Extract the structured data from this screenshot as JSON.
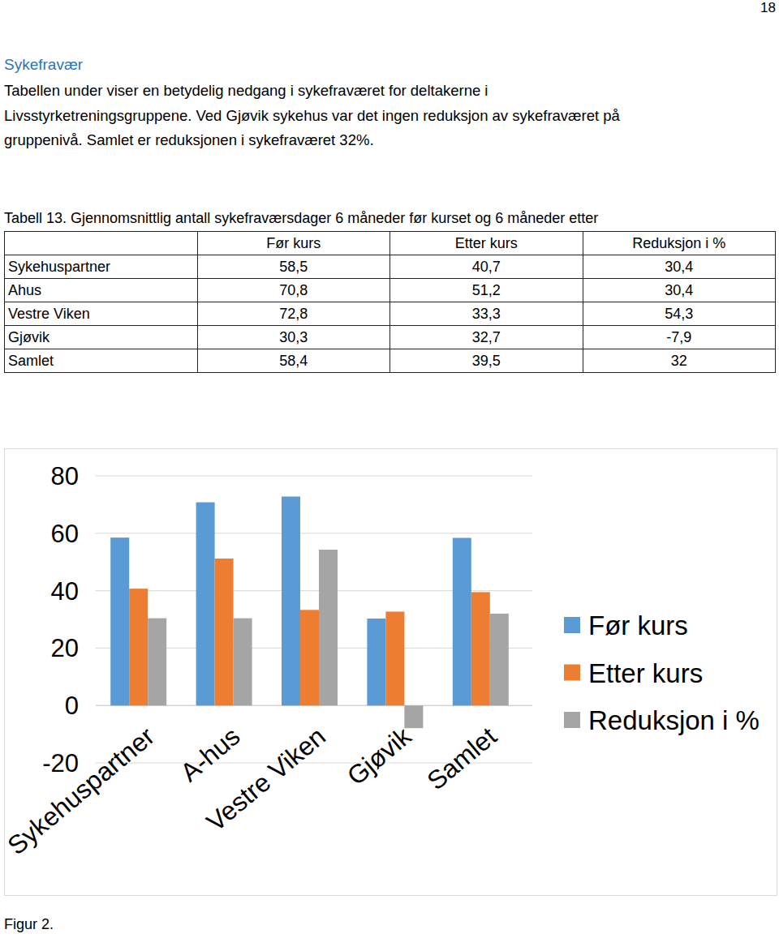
{
  "page_number": "18",
  "heading": "Sykefravær",
  "paragraph": [
    "Tabellen under viser en betydelig nedgang i sykefraværet for deltakerne i",
    "Livsstyrketreningsgruppene. Ved Gjøvik sykehus var det ingen reduksjon av sykefraværet på",
    "gruppenivå. Samlet er reduksjonen i sykefraværet 32%."
  ],
  "table": {
    "caption": "Tabell 13. Gjennomsnittlig antall sykefraværsdager 6 måneder før kurset og 6 måneder etter",
    "header": [
      "Før kurs",
      "Etter kurs",
      "Reduksjon i %"
    ],
    "rows": [
      [
        "Sykehuspartner",
        "58,5",
        "40,7",
        "30,4"
      ],
      [
        "Ahus",
        "70,8",
        "51,2",
        "30,4"
      ],
      [
        "Vestre Viken",
        "72,8",
        "33,3",
        "54,3"
      ],
      [
        "Gjøvik",
        "30,3",
        "32,7",
        "-7,9"
      ],
      [
        "Samlet",
        "58,4",
        "39,5",
        "32"
      ]
    ]
  },
  "chart_data": {
    "type": "bar",
    "categories": [
      "Sykehuspartner",
      "A-hus",
      "Vestre Viken",
      "Gjøvik",
      "Samlet"
    ],
    "series": [
      {
        "name": "Før kurs",
        "color": "#5b9bd5",
        "values": [
          58.5,
          70.8,
          72.8,
          30.3,
          58.4
        ]
      },
      {
        "name": "Etter kurs",
        "color": "#ed7d31",
        "values": [
          40.7,
          51.2,
          33.3,
          32.7,
          39.5
        ]
      },
      {
        "name": "Reduksjon i %",
        "color": "#a5a5a5",
        "values": [
          30.4,
          30.4,
          54.3,
          -7.9,
          32
        ]
      }
    ],
    "ylim": [
      -20,
      80
    ],
    "yticks": [
      -20,
      0,
      20,
      40,
      60,
      80
    ],
    "grid": true,
    "legend": "right"
  },
  "figure_caption": "Figur 2."
}
